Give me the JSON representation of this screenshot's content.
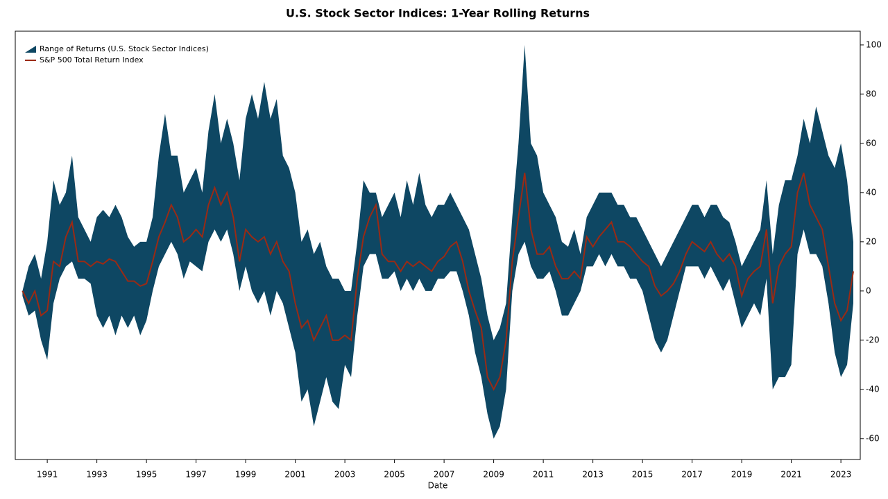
{
  "chart_data": {
    "type": "range-line",
    "title": "U.S. Stock Sector Indices: 1-Year Rolling Returns",
    "x_label": "Date",
    "x": [
      1990,
      1990.25,
      1990.5,
      1990.75,
      1991,
      1991.25,
      1991.5,
      1991.75,
      1992,
      1992.25,
      1992.5,
      1992.75,
      1993,
      1993.25,
      1993.5,
      1993.75,
      1994,
      1994.25,
      1994.5,
      1994.75,
      1995,
      1995.25,
      1995.5,
      1995.75,
      1996,
      1996.25,
      1996.5,
      1996.75,
      1997,
      1997.25,
      1997.5,
      1997.75,
      1998,
      1998.25,
      1998.5,
      1998.75,
      1999,
      1999.25,
      1999.5,
      1999.75,
      2000,
      2000.25,
      2000.5,
      2000.75,
      2001,
      2001.25,
      2001.5,
      2001.75,
      2002,
      2002.25,
      2002.5,
      2002.75,
      2003,
      2003.25,
      2003.5,
      2003.75,
      2004,
      2004.25,
      2004.5,
      2004.75,
      2005,
      2005.25,
      2005.5,
      2005.75,
      2006,
      2006.25,
      2006.5,
      2006.75,
      2007,
      2007.25,
      2007.5,
      2007.75,
      2008,
      2008.25,
      2008.5,
      2008.75,
      2009,
      2009.25,
      2009.5,
      2009.75,
      2010,
      2010.25,
      2010.5,
      2010.75,
      2011,
      2011.25,
      2011.5,
      2011.75,
      2012,
      2012.25,
      2012.5,
      2012.75,
      2013,
      2013.25,
      2013.5,
      2013.75,
      2014,
      2014.25,
      2014.5,
      2014.75,
      2015,
      2015.25,
      2015.5,
      2015.75,
      2016,
      2016.25,
      2016.5,
      2016.75,
      2017,
      2017.25,
      2017.5,
      2017.75,
      2018,
      2018.25,
      2018.5,
      2018.75,
      2019,
      2019.25,
      2019.5,
      2019.75,
      2020,
      2020.25,
      2020.5,
      2020.75,
      2021,
      2021.25,
      2021.5,
      2021.75,
      2022,
      2022.25,
      2022.5,
      2022.75,
      2023,
      2023.25,
      2023.5
    ],
    "series": [
      {
        "name": "Range of Returns (U.S. Stock Sector Indices)",
        "color": "#0e4763",
        "high": [
          0,
          10,
          15,
          5,
          20,
          45,
          35,
          40,
          55,
          30,
          25,
          20,
          30,
          33,
          30,
          35,
          30,
          22,
          18,
          20,
          20,
          30,
          55,
          72,
          55,
          55,
          40,
          45,
          50,
          40,
          65,
          80,
          60,
          70,
          60,
          45,
          70,
          80,
          70,
          85,
          70,
          78,
          55,
          50,
          40,
          20,
          25,
          15,
          20,
          10,
          5,
          5,
          0,
          0,
          20,
          45,
          40,
          40,
          30,
          35,
          40,
          30,
          45,
          35,
          48,
          35,
          30,
          35,
          35,
          40,
          35,
          30,
          25,
          15,
          5,
          -10,
          -20,
          -15,
          -5,
          30,
          60,
          100,
          60,
          55,
          40,
          35,
          30,
          20,
          18,
          25,
          15,
          30,
          35,
          40,
          40,
          40,
          35,
          35,
          30,
          30,
          25,
          20,
          15,
          10,
          15,
          20,
          25,
          30,
          35,
          35,
          30,
          35,
          35,
          30,
          28,
          20,
          10,
          15,
          20,
          25,
          45,
          15,
          35,
          45,
          45,
          55,
          70,
          60,
          75,
          65,
          55,
          50,
          60,
          45,
          20
        ],
        "low": [
          -2,
          -10,
          -8,
          -20,
          -28,
          -5,
          5,
          10,
          12,
          5,
          5,
          3,
          -10,
          -15,
          -10,
          -18,
          -10,
          -15,
          -10,
          -18,
          -12,
          0,
          10,
          15,
          20,
          15,
          5,
          12,
          10,
          8,
          20,
          25,
          20,
          25,
          15,
          0,
          10,
          0,
          -5,
          0,
          -10,
          0,
          -5,
          -15,
          -25,
          -45,
          -40,
          -55,
          -45,
          -35,
          -45,
          -48,
          -30,
          -35,
          -10,
          10,
          15,
          15,
          5,
          5,
          8,
          0,
          5,
          0,
          5,
          0,
          0,
          5,
          5,
          8,
          8,
          0,
          -10,
          -25,
          -35,
          -50,
          -60,
          -55,
          -40,
          0,
          15,
          20,
          10,
          5,
          5,
          8,
          0,
          -10,
          -10,
          -5,
          0,
          10,
          10,
          15,
          10,
          15,
          10,
          10,
          5,
          5,
          0,
          -10,
          -20,
          -25,
          -20,
          -10,
          0,
          10,
          10,
          10,
          5,
          10,
          5,
          0,
          5,
          -5,
          -15,
          -10,
          -5,
          -10,
          5,
          -40,
          -35,
          -35,
          -30,
          15,
          25,
          15,
          15,
          10,
          -5,
          -25,
          -35,
          -30,
          -5
        ]
      },
      {
        "name": "S&P 500 Total Return Index",
        "color": "#9b2a14",
        "values": [
          0,
          -5,
          0,
          -10,
          -8,
          12,
          10,
          22,
          28,
          12,
          12,
          10,
          12,
          11,
          13,
          12,
          8,
          4,
          4,
          2,
          3,
          12,
          22,
          28,
          35,
          30,
          20,
          22,
          25,
          22,
          35,
          42,
          35,
          40,
          30,
          12,
          25,
          22,
          20,
          22,
          15,
          20,
          12,
          8,
          -5,
          -15,
          -12,
          -20,
          -15,
          -10,
          -20,
          -20,
          -18,
          -20,
          5,
          22,
          30,
          35,
          15,
          12,
          12,
          8,
          12,
          10,
          12,
          10,
          8,
          12,
          14,
          18,
          20,
          12,
          0,
          -8,
          -15,
          -35,
          -40,
          -35,
          -20,
          12,
          30,
          48,
          25,
          15,
          15,
          18,
          10,
          5,
          5,
          8,
          5,
          22,
          18,
          22,
          25,
          28,
          20,
          20,
          18,
          15,
          12,
          10,
          2,
          -2,
          0,
          3,
          8,
          15,
          20,
          18,
          16,
          20,
          15,
          12,
          15,
          10,
          -2,
          5,
          8,
          10,
          25,
          -5,
          10,
          15,
          18,
          40,
          48,
          35,
          30,
          25,
          10,
          -5,
          -12,
          -8,
          8
        ]
      }
    ],
    "xlim": [
      1989.71,
      2023.78
    ],
    "xticks": [
      1991,
      1993,
      1995,
      1997,
      1999,
      2001,
      2003,
      2005,
      2007,
      2009,
      2011,
      2013,
      2015,
      2017,
      2019,
      2021,
      2023
    ],
    "ylim": [
      -68.5,
      105.6
    ],
    "yticks": [
      -60,
      -40,
      -20,
      0,
      20,
      40,
      60,
      80,
      100
    ],
    "y_axis_side": "right",
    "legend": "upper left"
  }
}
